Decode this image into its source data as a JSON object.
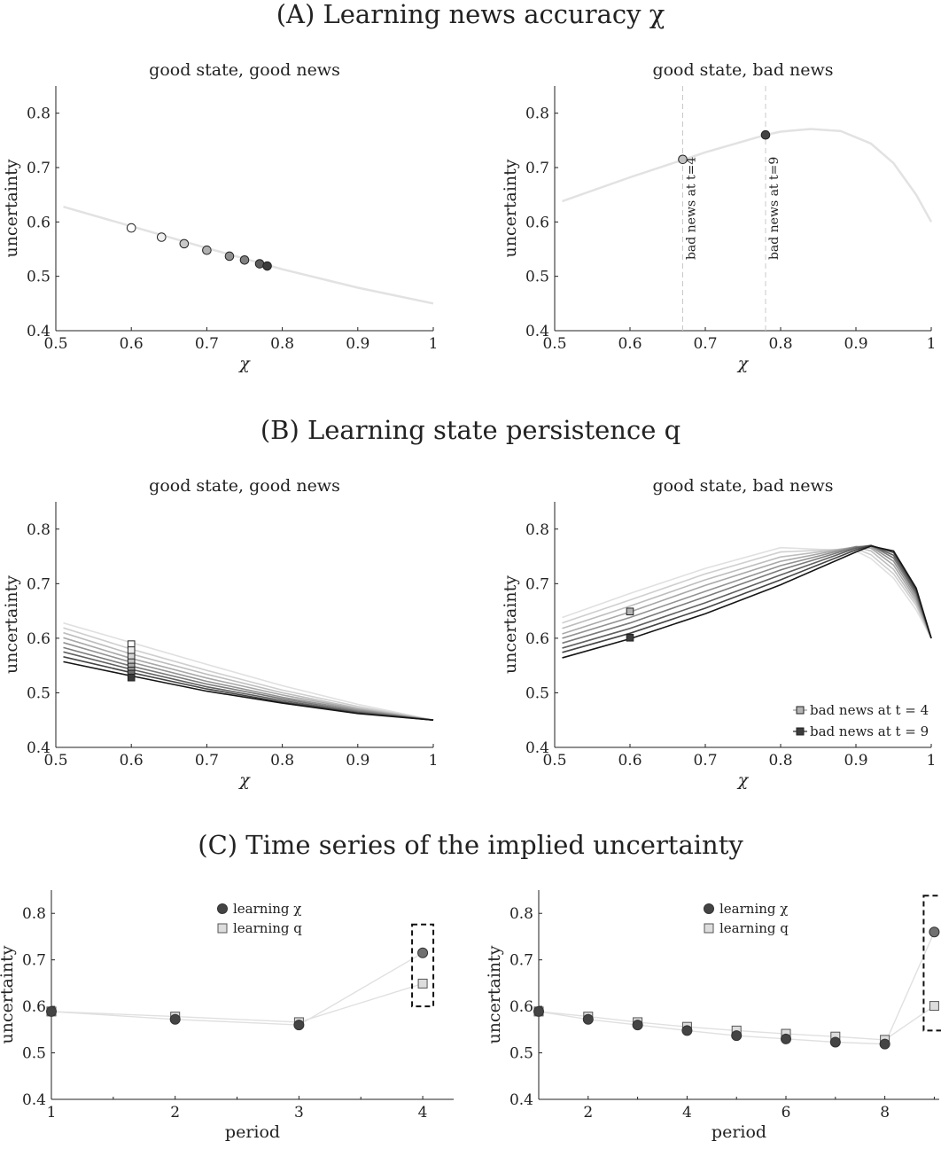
{
  "sections": [
    {
      "title": "(A) Learning news accuracy χ"
    },
    {
      "title": "(B) Learning state persistence q"
    },
    {
      "title": "(C) Time series of the implied uncertainty"
    }
  ],
  "chart_data": [
    {
      "id": "A1",
      "type": "scatter",
      "title": "good state, good news",
      "xlabel": "χ",
      "ylabel": "uncertainty",
      "xlim": [
        0.5,
        1
      ],
      "ylim": [
        0.4,
        0.85
      ],
      "xticks": [
        0.5,
        0.6,
        0.7,
        0.8,
        0.9,
        1
      ],
      "yticks": [
        0.4,
        0.5,
        0.6,
        0.7,
        0.8
      ],
      "curve": {
        "x": [
          0.51,
          0.6,
          0.7,
          0.8,
          0.9,
          1.0
        ],
        "y": [
          0.628,
          0.592,
          0.552,
          0.513,
          0.479,
          0.45
        ]
      },
      "points": [
        {
          "x": 0.6,
          "y": 0.589,
          "fill": "#ffffff"
        },
        {
          "x": 0.64,
          "y": 0.572,
          "fill": "#f0f0f0"
        },
        {
          "x": 0.67,
          "y": 0.56,
          "fill": "#c8c8c8"
        },
        {
          "x": 0.7,
          "y": 0.548,
          "fill": "#b0b0b0"
        },
        {
          "x": 0.73,
          "y": 0.537,
          "fill": "#909090"
        },
        {
          "x": 0.75,
          "y": 0.53,
          "fill": "#808080"
        },
        {
          "x": 0.77,
          "y": 0.523,
          "fill": "#5a5a5a"
        },
        {
          "x": 0.78,
          "y": 0.519,
          "fill": "#3c3c3c"
        }
      ]
    },
    {
      "id": "A2",
      "type": "scatter",
      "title": "good state, bad news",
      "xlabel": "χ",
      "ylabel": "uncertainty",
      "xlim": [
        0.5,
        1
      ],
      "ylim": [
        0.4,
        0.85
      ],
      "xticks": [
        0.5,
        0.6,
        0.7,
        0.8,
        0.9,
        1
      ],
      "yticks": [
        0.4,
        0.5,
        0.6,
        0.7,
        0.8
      ],
      "curve": {
        "x": [
          0.51,
          0.6,
          0.67,
          0.7,
          0.78,
          0.8,
          0.84,
          0.88,
          0.92,
          0.95,
          0.98,
          1.0
        ],
        "y": [
          0.638,
          0.682,
          0.714,
          0.728,
          0.76,
          0.766,
          0.771,
          0.767,
          0.744,
          0.708,
          0.65,
          0.6
        ]
      },
      "points": [
        {
          "x": 0.67,
          "y": 0.715,
          "fill": "#c0c0c0"
        },
        {
          "x": 0.78,
          "y": 0.76,
          "fill": "#444444"
        }
      ],
      "annotations": [
        {
          "x": 0.67,
          "text": "bad news at t=4"
        },
        {
          "x": 0.78,
          "text": "bad news at t=9"
        }
      ]
    },
    {
      "id": "B1",
      "type": "line",
      "title": "good state, good news",
      "xlabel": "χ",
      "ylabel": "uncertainty",
      "xlim": [
        0.5,
        1
      ],
      "ylim": [
        0.4,
        0.85
      ],
      "xticks": [
        0.5,
        0.6,
        0.7,
        0.8,
        0.9,
        1
      ],
      "yticks": [
        0.4,
        0.5,
        0.6,
        0.7,
        0.8
      ],
      "x": [
        0.51,
        0.6,
        0.7,
        0.8,
        0.9,
        1.0
      ],
      "series": [
        {
          "color": "#e0e0e0",
          "values": [
            0.628,
            0.592,
            0.552,
            0.513,
            0.479,
            0.45
          ]
        },
        {
          "color": "#cfcfcf",
          "values": [
            0.619,
            0.58,
            0.541,
            0.505,
            0.475,
            0.45
          ]
        },
        {
          "color": "#bdbdbd",
          "values": [
            0.61,
            0.571,
            0.534,
            0.5,
            0.472,
            0.45
          ]
        },
        {
          "color": "#a8a8a8",
          "values": [
            0.601,
            0.563,
            0.527,
            0.496,
            0.47,
            0.45
          ]
        },
        {
          "color": "#929292",
          "values": [
            0.592,
            0.556,
            0.521,
            0.492,
            0.468,
            0.45
          ]
        },
        {
          "color": "#7a7a7a",
          "values": [
            0.583,
            0.549,
            0.516,
            0.489,
            0.466,
            0.45
          ]
        },
        {
          "color": "#606060",
          "values": [
            0.575,
            0.543,
            0.511,
            0.486,
            0.464,
            0.45
          ]
        },
        {
          "color": "#444444",
          "values": [
            0.566,
            0.537,
            0.507,
            0.483,
            0.463,
            0.45
          ]
        },
        {
          "color": "#151515",
          "values": [
            0.557,
            0.531,
            0.503,
            0.481,
            0.462,
            0.45
          ]
        }
      ],
      "points": [
        {
          "x": 0.6,
          "y": 0.589,
          "fill": "#ffffff"
        },
        {
          "x": 0.6,
          "y": 0.578,
          "fill": "#eeeeee"
        },
        {
          "x": 0.6,
          "y": 0.566,
          "fill": "#d6d6d6"
        },
        {
          "x": 0.6,
          "y": 0.556,
          "fill": "#c4c4c4"
        },
        {
          "x": 0.6,
          "y": 0.548,
          "fill": "#ababab"
        },
        {
          "x": 0.6,
          "y": 0.541,
          "fill": "#8e8e8e"
        },
        {
          "x": 0.6,
          "y": 0.535,
          "fill": "#6e6e6e"
        },
        {
          "x": 0.6,
          "y": 0.528,
          "fill": "#3a3a3a"
        }
      ]
    },
    {
      "id": "B2",
      "type": "line",
      "title": "good state, bad news",
      "xlabel": "χ",
      "ylabel": "uncertainty",
      "xlim": [
        0.5,
        1
      ],
      "ylim": [
        0.4,
        0.85
      ],
      "xticks": [
        0.5,
        0.6,
        0.7,
        0.8,
        0.9,
        1
      ],
      "yticks": [
        0.4,
        0.5,
        0.6,
        0.7,
        0.8
      ],
      "x": [
        0.51,
        0.6,
        0.7,
        0.8,
        0.9,
        0.92,
        0.95,
        0.98,
        1.0
      ],
      "series": [
        {
          "color": "#e0e0e0",
          "values": [
            0.638,
            0.682,
            0.728,
            0.766,
            0.76,
            0.746,
            0.71,
            0.652,
            0.6
          ]
        },
        {
          "color": "#cfcfcf",
          "values": [
            0.628,
            0.67,
            0.718,
            0.758,
            0.764,
            0.753,
            0.718,
            0.66,
            0.6
          ]
        },
        {
          "color": "#bdbdbd",
          "values": [
            0.618,
            0.659,
            0.707,
            0.749,
            0.767,
            0.76,
            0.726,
            0.665,
            0.6
          ]
        },
        {
          "color": "#a8a8a8",
          "values": [
            0.608,
            0.648,
            0.697,
            0.741,
            0.768,
            0.765,
            0.734,
            0.67,
            0.6
          ]
        },
        {
          "color": "#929292",
          "values": [
            0.6,
            0.638,
            0.686,
            0.733,
            0.768,
            0.768,
            0.741,
            0.675,
            0.6
          ]
        },
        {
          "color": "#7a7a7a",
          "values": [
            0.591,
            0.628,
            0.676,
            0.725,
            0.767,
            0.77,
            0.747,
            0.68,
            0.6
          ]
        },
        {
          "color": "#606060",
          "values": [
            0.582,
            0.618,
            0.665,
            0.716,
            0.765,
            0.77,
            0.752,
            0.684,
            0.6
          ]
        },
        {
          "color": "#444444",
          "values": [
            0.574,
            0.609,
            0.655,
            0.707,
            0.762,
            0.77,
            0.757,
            0.688,
            0.6
          ]
        },
        {
          "color": "#151515",
          "values": [
            0.564,
            0.599,
            0.645,
            0.698,
            0.758,
            0.769,
            0.76,
            0.692,
            0.6
          ]
        }
      ],
      "points": [
        {
          "x": 0.6,
          "y": 0.649,
          "fill": "#b4b4b4"
        },
        {
          "x": 0.6,
          "y": 0.601,
          "fill": "#3c3c3c"
        }
      ],
      "legend": {
        "position": "bottom-right",
        "entries": [
          {
            "label": "bad news at t = 4",
            "fill": "#b4b4b4",
            "line": "#999999"
          },
          {
            "label": "bad news at t = 9",
            "fill": "#3c3c3c",
            "line": "#222222"
          }
        ]
      }
    },
    {
      "id": "C1",
      "type": "scatter",
      "xlabel": "period",
      "ylabel": "uncertainty",
      "xlim": [
        1,
        4.25
      ],
      "ylim": [
        0.4,
        0.85
      ],
      "xticks": [
        1,
        2,
        3,
        4
      ],
      "yticks": [
        0.4,
        0.5,
        0.6,
        0.7,
        0.8
      ],
      "series": [
        {
          "name": "learning χ",
          "marker": "circle",
          "fill": "#444444",
          "x": [
            1,
            2,
            3,
            4
          ],
          "values": [
            0.589,
            0.572,
            0.56,
            0.715
          ]
        },
        {
          "name": "learning q",
          "marker": "square",
          "fill": "#dddddd",
          "x": [
            1,
            2,
            3,
            4
          ],
          "values": [
            0.589,
            0.578,
            0.566,
            0.649
          ]
        }
      ],
      "highlight": {
        "x": 4,
        "ymin": 0.6,
        "ymax": 0.776
      }
    },
    {
      "id": "C2",
      "type": "scatter",
      "xlabel": "period",
      "ylabel": "uncertainty",
      "xlim": [
        1,
        9.1
      ],
      "ylim": [
        0.4,
        0.85
      ],
      "xticks": [
        2,
        4,
        6,
        8
      ],
      "yticks": [
        0.4,
        0.5,
        0.6,
        0.7,
        0.8
      ],
      "series": [
        {
          "name": "learning χ",
          "marker": "circle",
          "fill": "#444444",
          "x": [
            1,
            2,
            3,
            4,
            5,
            6,
            7,
            8,
            9
          ],
          "values": [
            0.589,
            0.572,
            0.56,
            0.548,
            0.537,
            0.53,
            0.523,
            0.519,
            0.76
          ]
        },
        {
          "name": "learning q",
          "marker": "square",
          "fill": "#dddddd",
          "x": [
            1,
            2,
            3,
            4,
            5,
            6,
            7,
            8,
            9
          ],
          "values": [
            0.589,
            0.578,
            0.566,
            0.556,
            0.548,
            0.541,
            0.535,
            0.528,
            0.601
          ]
        }
      ],
      "highlight": {
        "x": 9,
        "ymin": 0.548,
        "ymax": 0.838
      }
    }
  ]
}
